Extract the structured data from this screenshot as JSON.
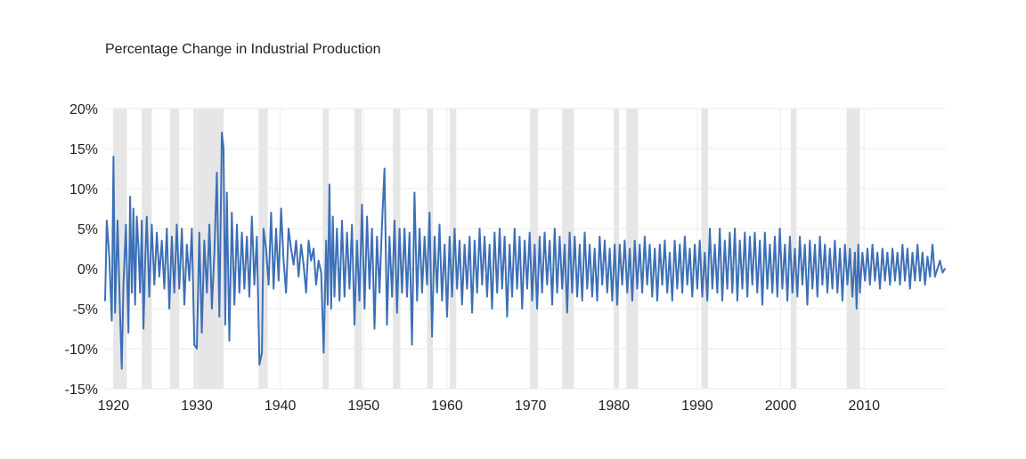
{
  "chart_data": {
    "type": "line",
    "title": "Percentage Change in Industrial Production",
    "xlabel": "",
    "ylabel": "",
    "xlim": [
      1919,
      2019.8
    ],
    "ylim": [
      -15,
      20
    ],
    "grid": true,
    "legend": "none",
    "x_ticks": [
      1920,
      1930,
      1940,
      1950,
      1960,
      1970,
      1980,
      1990,
      2000,
      2010
    ],
    "y_ticks": [
      {
        "value": 20,
        "label": "20%"
      },
      {
        "value": 15,
        "label": "15%"
      },
      {
        "value": 10,
        "label": "10%"
      },
      {
        "value": 5,
        "label": "5%"
      },
      {
        "value": 0,
        "label": "0%"
      },
      {
        "value": -5,
        "label": "-5%"
      },
      {
        "value": -10,
        "label": "-10%"
      },
      {
        "value": -15,
        "label": "-15%"
      }
    ],
    "recessions": [
      [
        1920.0,
        1921.6
      ],
      [
        1923.4,
        1924.6
      ],
      [
        1926.8,
        1927.9
      ],
      [
        1929.6,
        1933.2
      ],
      [
        1937.4,
        1938.5
      ],
      [
        1945.1,
        1945.8
      ],
      [
        1948.9,
        1949.8
      ],
      [
        1953.5,
        1954.4
      ],
      [
        1957.6,
        1958.3
      ],
      [
        1960.3,
        1961.1
      ],
      [
        1969.9,
        1970.9
      ],
      [
        1973.8,
        1975.2
      ],
      [
        1980.0,
        1980.6
      ],
      [
        1981.5,
        1982.9
      ],
      [
        1990.5,
        1991.3
      ],
      [
        2001.2,
        2001.9
      ],
      [
        2007.9,
        2009.5
      ]
    ],
    "series": [
      {
        "color": "#3d6fb6",
        "x": [
          1919.0,
          1919.2,
          1919.5,
          1919.8,
          1920.0,
          1920.2,
          1920.5,
          1920.8,
          1921.0,
          1921.2,
          1921.5,
          1921.8,
          1922.0,
          1922.2,
          1922.4,
          1922.6,
          1922.8,
          1923.0,
          1923.2,
          1923.4,
          1923.6,
          1923.8,
          1924.0,
          1924.3,
          1924.6,
          1924.9,
          1925.2,
          1925.5,
          1925.8,
          1926.1,
          1926.4,
          1926.7,
          1927.0,
          1927.3,
          1927.6,
          1927.9,
          1928.2,
          1928.5,
          1928.8,
          1929.1,
          1929.4,
          1929.7,
          1930.0,
          1930.3,
          1930.6,
          1930.9,
          1931.2,
          1931.5,
          1931.8,
          1932.1,
          1932.4,
          1932.7,
          1933.0,
          1933.2,
          1933.4,
          1933.6,
          1933.9,
          1934.2,
          1934.5,
          1934.8,
          1935.1,
          1935.4,
          1935.7,
          1936.0,
          1936.3,
          1936.6,
          1936.9,
          1937.2,
          1937.5,
          1937.8,
          1938.0,
          1938.3,
          1938.6,
          1938.9,
          1939.2,
          1939.5,
          1939.8,
          1940.1,
          1940.4,
          1940.7,
          1941.0,
          1941.3,
          1941.6,
          1941.9,
          1942.2,
          1942.5,
          1942.8,
          1943.1,
          1943.4,
          1943.7,
          1944.0,
          1944.3,
          1944.6,
          1944.9,
          1945.2,
          1945.5,
          1945.7,
          1945.9,
          1946.1,
          1946.3,
          1946.5,
          1946.8,
          1947.1,
          1947.4,
          1947.7,
          1948.0,
          1948.3,
          1948.6,
          1948.9,
          1949.2,
          1949.5,
          1949.8,
          1950.1,
          1950.4,
          1950.7,
          1951.0,
          1951.3,
          1951.6,
          1951.9,
          1952.2,
          1952.5,
          1952.8,
          1953.1,
          1953.4,
          1953.7,
          1954.0,
          1954.3,
          1954.6,
          1954.9,
          1955.2,
          1955.5,
          1955.8,
          1956.1,
          1956.4,
          1956.7,
          1957.0,
          1957.3,
          1957.6,
          1957.9,
          1958.2,
          1958.5,
          1958.8,
          1959.1,
          1959.4,
          1959.7,
          1960.0,
          1960.3,
          1960.6,
          1960.9,
          1961.2,
          1961.5,
          1961.8,
          1962.1,
          1962.4,
          1962.7,
          1963.0,
          1963.3,
          1963.6,
          1963.9,
          1964.2,
          1964.5,
          1964.8,
          1965.1,
          1965.4,
          1965.7,
          1966.0,
          1966.3,
          1966.6,
          1966.9,
          1967.2,
          1967.5,
          1967.8,
          1968.1,
          1968.4,
          1968.7,
          1969.0,
          1969.3,
          1969.6,
          1969.9,
          1970.2,
          1970.5,
          1970.8,
          1971.1,
          1971.4,
          1971.7,
          1972.0,
          1972.3,
          1972.6,
          1972.9,
          1973.2,
          1973.5,
          1973.8,
          1974.1,
          1974.4,
          1974.7,
          1975.0,
          1975.3,
          1975.6,
          1975.9,
          1976.2,
          1976.5,
          1976.8,
          1977.1,
          1977.4,
          1977.7,
          1978.0,
          1978.3,
          1978.6,
          1978.9,
          1979.2,
          1979.5,
          1979.8,
          1980.1,
          1980.4,
          1980.7,
          1981.0,
          1981.3,
          1981.6,
          1981.9,
          1982.2,
          1982.5,
          1982.8,
          1983.1,
          1983.4,
          1983.7,
          1984.0,
          1984.3,
          1984.6,
          1984.9,
          1985.2,
          1985.5,
          1985.8,
          1986.1,
          1986.4,
          1986.7,
          1987.0,
          1987.3,
          1987.6,
          1987.9,
          1988.2,
          1988.5,
          1988.8,
          1989.1,
          1989.4,
          1989.7,
          1990.0,
          1990.3,
          1990.6,
          1990.9,
          1991.2,
          1991.5,
          1991.8,
          1992.1,
          1992.4,
          1992.7,
          1993.0,
          1993.3,
          1993.6,
          1993.9,
          1994.2,
          1994.5,
          1994.8,
          1995.1,
          1995.4,
          1995.7,
          1996.0,
          1996.3,
          1996.6,
          1996.9,
          1997.2,
          1997.5,
          1997.8,
          1998.1,
          1998.4,
          1998.7,
          1999.0,
          1999.3,
          1999.6,
          1999.9,
          2000.2,
          2000.5,
          2000.8,
          2001.1,
          2001.4,
          2001.7,
          2002.0,
          2002.3,
          2002.6,
          2002.9,
          2003.2,
          2003.5,
          2003.8,
          2004.1,
          2004.4,
          2004.7,
          2005.0,
          2005.3,
          2005.6,
          2005.9,
          2006.2,
          2006.5,
          2006.8,
          2007.1,
          2007.4,
          2007.7,
          2008.0,
          2008.3,
          2008.6,
          2008.9,
          2009.1,
          2009.3,
          2009.5,
          2009.8,
          2010.1,
          2010.4,
          2010.7,
          2011.0,
          2011.3,
          2011.6,
          2011.9,
          2012.2,
          2012.5,
          2012.8,
          2013.1,
          2013.4,
          2013.7,
          2014.0,
          2014.3,
          2014.6,
          2014.9,
          2015.2,
          2015.5,
          2015.8,
          2016.1,
          2016.4,
          2016.7,
          2017.0,
          2017.3,
          2017.6,
          2017.9,
          2018.2,
          2018.5,
          2018.8,
          2019.1,
          2019.4,
          2019.7
        ],
        "y": [
          -4.0,
          6.0,
          1.5,
          -6.5,
          14.0,
          -5.5,
          6.0,
          -6.0,
          -12.5,
          -2.0,
          5.5,
          -8.0,
          9.0,
          -3.0,
          7.5,
          -4.5,
          6.5,
          2.5,
          -3.0,
          6.0,
          -7.5,
          1.0,
          6.5,
          -3.5,
          5.5,
          -2.0,
          4.5,
          -1.0,
          3.5,
          -2.5,
          5.0,
          -5.0,
          4.0,
          -3.0,
          5.5,
          -2.5,
          5.0,
          -4.5,
          3.0,
          -1.5,
          5.0,
          -9.5,
          -10.0,
          4.5,
          -8.0,
          3.5,
          -3.0,
          5.5,
          -5.0,
          2.0,
          12.0,
          -6.0,
          17.0,
          15.0,
          -7.0,
          9.5,
          -9.0,
          7.0,
          -4.5,
          5.5,
          -3.0,
          4.5,
          -2.5,
          4.0,
          -3.5,
          6.5,
          -2.0,
          4.0,
          -12.0,
          -10.5,
          5.0,
          2.5,
          -2.0,
          7.0,
          -2.5,
          5.0,
          -1.5,
          7.5,
          1.0,
          -3.0,
          5.0,
          2.5,
          0.5,
          3.5,
          -1.0,
          3.0,
          0.5,
          -3.0,
          3.5,
          1.0,
          2.5,
          -2.0,
          1.0,
          -0.5,
          -10.5,
          3.5,
          -4.5,
          10.5,
          -5.0,
          6.5,
          -3.5,
          5.0,
          -4.0,
          6.0,
          -3.5,
          4.5,
          -2.5,
          5.5,
          -7.0,
          3.5,
          -4.0,
          8.0,
          -5.0,
          6.5,
          -2.5,
          5.0,
          -7.5,
          4.0,
          -3.0,
          5.5,
          12.5,
          -7.0,
          4.0,
          -3.5,
          6.0,
          -5.5,
          5.0,
          -3.0,
          5.0,
          -3.5,
          4.5,
          -9.5,
          9.5,
          -4.0,
          5.0,
          -3.0,
          4.0,
          -2.0,
          7.0,
          -8.5,
          4.0,
          -3.0,
          5.5,
          -4.0,
          3.0,
          -6.0,
          4.0,
          -3.5,
          5.0,
          -2.5,
          3.5,
          -4.5,
          3.0,
          -2.5,
          4.0,
          -5.5,
          3.5,
          -3.0,
          5.0,
          -2.0,
          4.0,
          -3.5,
          3.0,
          -5.0,
          4.5,
          -3.0,
          5.0,
          -2.5,
          4.0,
          -6.0,
          3.0,
          -3.5,
          5.0,
          -2.5,
          4.0,
          -5.0,
          3.5,
          -2.5,
          4.5,
          -4.0,
          3.0,
          -5.0,
          4.0,
          -3.0,
          4.5,
          -2.0,
          3.5,
          -4.5,
          5.0,
          -3.0,
          4.0,
          -2.5,
          3.0,
          -5.5,
          4.5,
          -3.0,
          4.0,
          -3.5,
          3.0,
          -4.0,
          4.5,
          -2.5,
          3.0,
          -3.5,
          2.5,
          -4.0,
          4.0,
          -2.0,
          3.5,
          -3.0,
          2.5,
          -4.0,
          3.0,
          -4.5,
          3.0,
          -2.0,
          3.5,
          -3.0,
          2.5,
          -4.0,
          3.5,
          -2.5,
          3.0,
          -3.0,
          4.0,
          -2.0,
          3.0,
          -3.5,
          2.5,
          -4.0,
          3.0,
          -2.0,
          3.5,
          -3.0,
          2.0,
          -4.0,
          3.5,
          -2.5,
          3.0,
          -3.0,
          4.0,
          -2.0,
          2.5,
          -3.5,
          3.0,
          -2.5,
          3.5,
          -3.5,
          2.0,
          -4.0,
          5.0,
          -2.5,
          3.0,
          -3.0,
          5.0,
          -4.0,
          3.5,
          -2.5,
          4.5,
          -3.0,
          5.0,
          -4.0,
          3.5,
          -2.5,
          4.5,
          -3.5,
          4.0,
          -2.0,
          4.5,
          -3.0,
          3.5,
          -4.5,
          4.5,
          -2.5,
          3.0,
          -3.0,
          4.0,
          -3.5,
          5.0,
          -2.5,
          3.0,
          -4.0,
          4.0,
          -3.0,
          2.5,
          -3.5,
          4.0,
          -2.0,
          3.0,
          -4.5,
          3.5,
          -2.5,
          3.0,
          -3.5,
          4.0,
          -2.0,
          3.0,
          -3.0,
          2.5,
          -2.5,
          3.5,
          -3.0,
          2.5,
          -4.0,
          3.0,
          -2.0,
          2.5,
          -3.5,
          2.0,
          -5.0,
          3.0,
          -3.0,
          2.0,
          -1.5,
          2.5,
          -2.0,
          3.0,
          -1.5,
          2.0,
          -2.5,
          2.5,
          -1.5,
          2.0,
          -2.0,
          2.5,
          -1.5,
          2.0,
          -2.0,
          3.0,
          -1.5,
          2.5,
          -2.5,
          2.0,
          -1.5,
          3.0,
          -1.5,
          2.0,
          -2.0,
          1.5,
          -1.0,
          3.0,
          -1.0,
          0.0,
          1.0,
          -0.5,
          0.0
        ]
      }
    ]
  }
}
